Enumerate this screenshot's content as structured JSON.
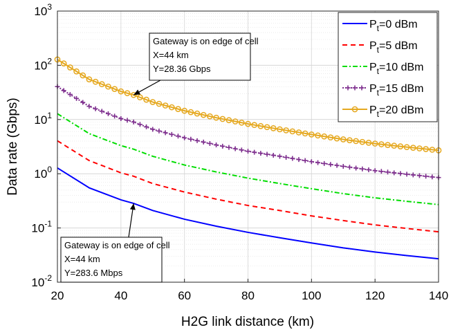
{
  "chart_data": {
    "type": "line",
    "xlabel": "H2G link distance (km)",
    "ylabel": "Data rate (Gbps)",
    "xlim": [
      20,
      140
    ],
    "ylim": [
      0.01,
      1000
    ],
    "yscale": "log",
    "grid": true,
    "legend_placement": "top-right",
    "x_ticks": [
      "20",
      "40",
      "60",
      "80",
      "100",
      "120",
      "140"
    ],
    "y_ticks": [
      {
        "base": "10",
        "exp": "-2"
      },
      {
        "base": "10",
        "exp": "-1"
      },
      {
        "base": "10",
        "exp": "0"
      },
      {
        "base": "10",
        "exp": "1"
      },
      {
        "base": "10",
        "exp": "2"
      },
      {
        "base": "10",
        "exp": "3"
      }
    ],
    "x": [
      20,
      30,
      40,
      44,
      50,
      60,
      70,
      80,
      90,
      100,
      110,
      120,
      130,
      140
    ],
    "series": [
      {
        "legend_prefix": "P",
        "legend_sub": "t",
        "legend_suffix": "=0 dBm",
        "color": "#0000ff",
        "style": "solid",
        "values": [
          1.28,
          0.55,
          0.33,
          0.284,
          0.21,
          0.145,
          0.108,
          0.083,
          0.066,
          0.053,
          0.043,
          0.036,
          0.031,
          0.027
        ]
      },
      {
        "legend_prefix": "P",
        "legend_sub": "t",
        "legend_suffix": "=5 dBm",
        "color": "#ff0000",
        "style": "dashed",
        "values": [
          4.05,
          1.75,
          1.04,
          0.9,
          0.66,
          0.46,
          0.34,
          0.26,
          0.21,
          0.167,
          0.137,
          0.114,
          0.098,
          0.085
        ]
      },
      {
        "legend_prefix": "P",
        "legend_sub": "t",
        "legend_suffix": "=10 dBm",
        "color": "#00dd00",
        "style": "dashdot",
        "values": [
          12.8,
          5.5,
          3.3,
          2.84,
          2.1,
          1.45,
          1.08,
          0.83,
          0.66,
          0.53,
          0.43,
          0.36,
          0.31,
          0.27
        ]
      },
      {
        "legend_prefix": "P",
        "legend_sub": "t",
        "legend_suffix": "=15 dBm",
        "color": "#7e2f8e",
        "style": "dotted-plus",
        "values": [
          40.5,
          17.5,
          10.4,
          9.0,
          6.6,
          4.6,
          3.4,
          2.6,
          2.1,
          1.67,
          1.37,
          1.14,
          0.98,
          0.85
        ]
      },
      {
        "legend_prefix": "P",
        "legend_sub": "t",
        "legend_suffix": "=20 dBm",
        "color": "#e5a81f",
        "style": "solid-circle",
        "values": [
          128,
          55,
          33,
          28.36,
          21,
          14.5,
          10.8,
          8.3,
          6.6,
          5.3,
          4.3,
          3.6,
          3.1,
          2.7
        ]
      }
    ],
    "annotations": [
      {
        "lines": [
          "Gateway is on edge of cell",
          "X=44 km",
          "Y=28.36 Gbps"
        ],
        "point": [
          44,
          28.36
        ]
      },
      {
        "lines": [
          "Gateway is on edge of cell",
          "X=44 km",
          "Y=283.6 Mbps"
        ],
        "point": [
          44,
          0.2836
        ]
      }
    ]
  }
}
